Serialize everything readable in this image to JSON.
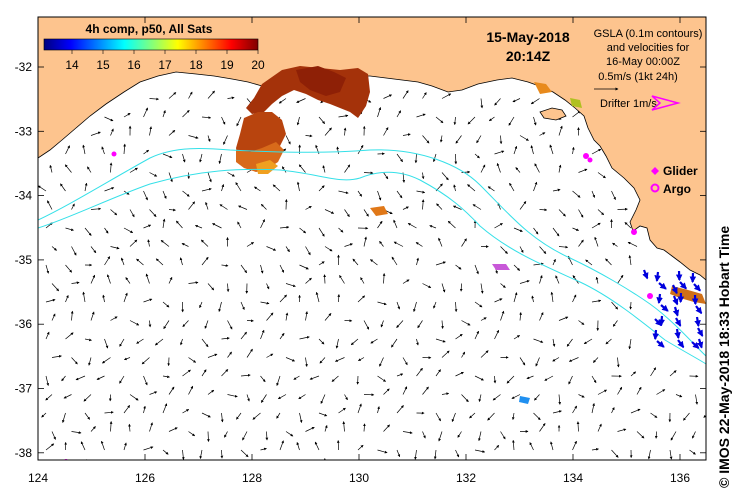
{
  "map": {
    "colorbar": {
      "title": "4h comp, p50, All Sats",
      "ticks": [
        "14",
        "15",
        "16",
        "17",
        "18",
        "19",
        "20"
      ],
      "colors": [
        "#00007f",
        "#0000ff",
        "#007fff",
        "#00ffff",
        "#7fff7f",
        "#ffff00",
        "#ff7f00",
        "#ff0000",
        "#7f0000"
      ]
    },
    "datetime": {
      "date": "15-May-2018",
      "time": "20:14Z"
    },
    "gsla_note": [
      "GSLA (0.1m contours)",
      "and velocities for",
      "16-May 00:00Z",
      "0.5m/s (1kt 24h)"
    ],
    "drifter_label": "Drifter 1m/s",
    "legend": {
      "glider": "Glider",
      "argo": "Argo"
    },
    "copyright": "© IMOS 22-May-2018 18:33 Hobart Time",
    "lon_ticks": [
      "124",
      "126",
      "128",
      "130",
      "132",
      "134",
      "136"
    ],
    "lat_ticks": [
      "-32",
      "-33",
      "-34",
      "-35",
      "-36",
      "-37",
      "-38"
    ],
    "colors": {
      "land": "#fdc48e",
      "contour": "#35e0e8",
      "arrow": "#000000",
      "marker": "#ff00ff",
      "blue_arrows": "#0000dd"
    }
  }
}
